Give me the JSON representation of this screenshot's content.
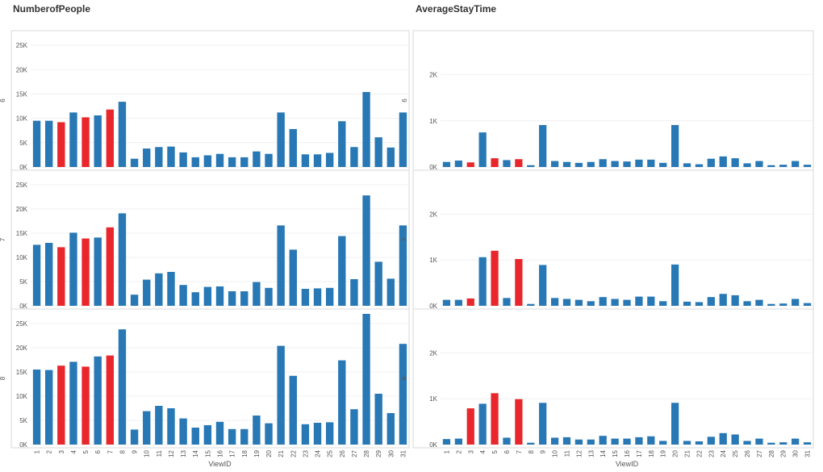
{
  "chart_data": {
    "type": "bar",
    "xlabel": "ViewID",
    "categories": [
      "1",
      "2",
      "3",
      "4",
      "5",
      "6",
      "7",
      "8",
      "9",
      "10",
      "11",
      "12",
      "13",
      "14",
      "15",
      "16",
      "17",
      "18",
      "19",
      "20",
      "21",
      "22",
      "23",
      "24",
      "25",
      "26",
      "27",
      "28",
      "29",
      "30",
      "31"
    ],
    "highlight_categories": [
      "3",
      "5",
      "7"
    ],
    "rows": [
      "6",
      "7",
      "8"
    ],
    "colors": {
      "bar": "#2878b5",
      "highlight": "#e8262b",
      "grid": "#e6e6e6",
      "frame": "#d8d8d8"
    },
    "panels": [
      {
        "title": "NumberofPeople",
        "ylim": [
          0,
          27000
        ],
        "yticks": [
          0,
          5000,
          10000,
          15000,
          20000,
          25000
        ],
        "ytick_labels": [
          "0K",
          "5K",
          "10K",
          "15K",
          "20K",
          "25K"
        ],
        "series": [
          {
            "row": "6",
            "values": [
              9500,
              9500,
              9200,
              11200,
              10200,
              10600,
              11800,
              13400,
              1700,
              3800,
              4100,
              4200,
              3000,
              2000,
              2400,
              2700,
              2000,
              2000,
              3200,
              2700,
              11200,
              7800,
              2600,
              2600,
              2900,
              9400,
              4100,
              15400,
              6100,
              4000,
              11200
            ]
          },
          {
            "row": "7",
            "values": [
              12600,
              13000,
              12100,
              15100,
              13900,
              14100,
              16200,
              19100,
              2300,
              5400,
              6700,
              7000,
              4300,
              2800,
              3900,
              4000,
              3000,
              3000,
              4900,
              3700,
              16600,
              11600,
              3500,
              3600,
              3700,
              14400,
              5500,
              22800,
              9100,
              5600,
              16600
            ]
          },
          {
            "row": "8",
            "values": [
              15500,
              15400,
              16300,
              17100,
              16100,
              18200,
              18400,
              23800,
              3100,
              6900,
              8000,
              7500,
              5400,
              3500,
              4000,
              4700,
              3200,
              3200,
              6000,
              4400,
              20400,
              14200,
              4200,
              4500,
              4600,
              17400,
              7300,
              27000,
              10500,
              6500,
              20800
            ]
          }
        ]
      },
      {
        "title": "AverageStayTime",
        "ylim": [
          0,
          2850
        ],
        "yticks": [
          0,
          1000,
          2000
        ],
        "ytick_labels": [
          "0K",
          "1K",
          "2K"
        ],
        "series": [
          {
            "row": "6",
            "values": [
              110,
              140,
              100,
              750,
              190,
              150,
              170,
              40,
              910,
              130,
              110,
              90,
              110,
              170,
              130,
              120,
              160,
              160,
              90,
              910,
              80,
              60,
              180,
              230,
              190,
              80,
              130,
              40,
              50,
              130,
              50
            ]
          },
          {
            "row": "7",
            "values": [
              130,
              130,
              160,
              1060,
              1200,
              170,
              1020,
              40,
              890,
              170,
              150,
              130,
              100,
              190,
              150,
              130,
              200,
              200,
              100,
              900,
              90,
              80,
              190,
              260,
              230,
              100,
              130,
              40,
              50,
              150,
              60
            ]
          },
          {
            "row": "8",
            "values": [
              120,
              130,
              790,
              890,
              1120,
              150,
              990,
              40,
              910,
              150,
              160,
              110,
              110,
              190,
              130,
              130,
              160,
              180,
              80,
              910,
              80,
              70,
              170,
              250,
              220,
              80,
              130,
              40,
              50,
              130,
              50
            ]
          }
        ]
      }
    ]
  }
}
